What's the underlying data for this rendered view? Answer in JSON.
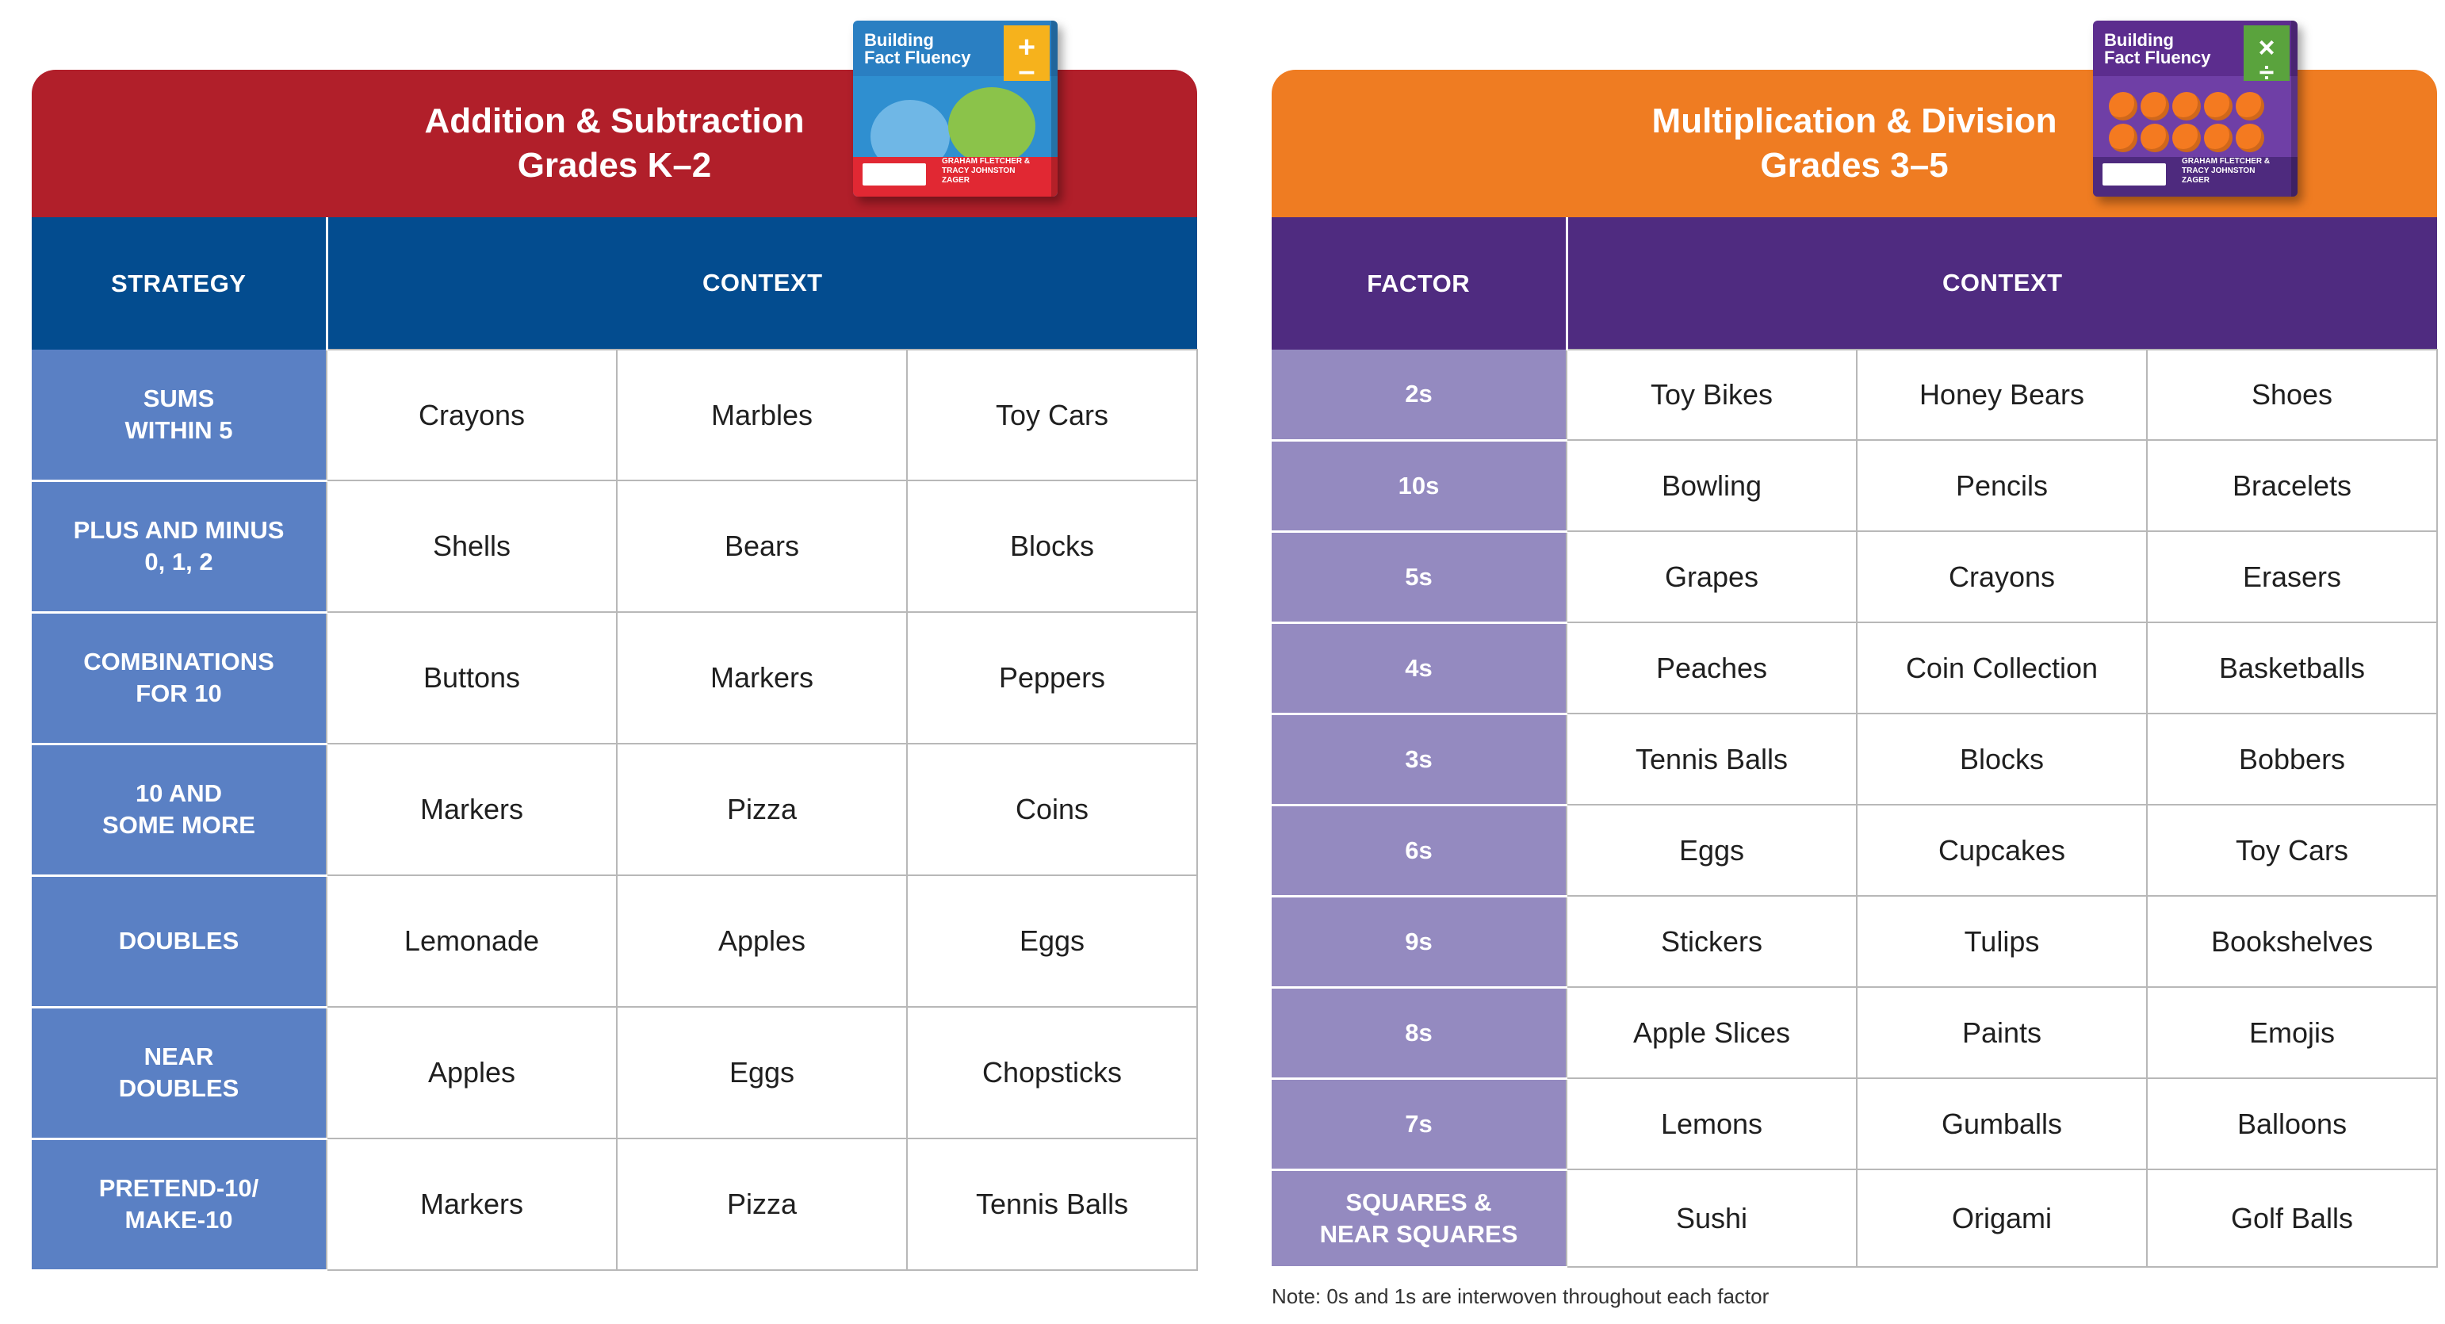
{
  "left": {
    "banner": {
      "line1": "Addition & Subtraction",
      "line2": "Grades K–2"
    },
    "book": {
      "title1": "Building",
      "title2": "Fact Fluency",
      "author1": "GRAHAM FLETCHER &",
      "author2": "TRACY JOHNSTON ZAGER",
      "operator1": "+",
      "operator2": "–"
    },
    "header": {
      "col1": "STRATEGY",
      "col2": "CONTEXT"
    },
    "rows": [
      {
        "label1": "SUMS",
        "label2": "WITHIN 5",
        "c1": "Crayons",
        "c2": "Marbles",
        "c3": "Toy Cars"
      },
      {
        "label1": "PLUS AND MINUS",
        "label2": "0, 1, 2",
        "c1": "Shells",
        "c2": "Bears",
        "c3": "Blocks"
      },
      {
        "label1": "COMBINATIONS",
        "label2": "FOR 10",
        "c1": "Buttons",
        "c2": "Markers",
        "c3": "Peppers"
      },
      {
        "label1": "10 AND",
        "label2": "SOME MORE",
        "c1": "Markers",
        "c2": "Pizza",
        "c3": "Coins"
      },
      {
        "label1": "DOUBLES",
        "label2": "",
        "c1": "Lemonade",
        "c2": "Apples",
        "c3": "Eggs"
      },
      {
        "label1": "NEAR",
        "label2": "DOUBLES",
        "c1": "Apples",
        "c2": "Eggs",
        "c3": "Chopsticks"
      },
      {
        "label1": "PRETEND-10/",
        "label2": "MAKE-10",
        "c1": "Markers",
        "c2": "Pizza",
        "c3": "Tennis Balls"
      }
    ]
  },
  "right": {
    "banner": {
      "line1": "Multiplication & Division",
      "line2": "Grades 3–5"
    },
    "book": {
      "title1": "Building",
      "title2": "Fact Fluency",
      "author1": "GRAHAM FLETCHER &",
      "author2": "TRACY JOHNSTON ZAGER",
      "operator1": "×",
      "operator2": "÷"
    },
    "header": {
      "col1": "FACTOR",
      "col2": "CONTEXT"
    },
    "rows": [
      {
        "label1": "2s",
        "label2": "",
        "c1": "Toy Bikes",
        "c2": "Honey Bears",
        "c3": "Shoes"
      },
      {
        "label1": "10s",
        "label2": "",
        "c1": "Bowling",
        "c2": "Pencils",
        "c3": "Bracelets"
      },
      {
        "label1": "5s",
        "label2": "",
        "c1": "Grapes",
        "c2": "Crayons",
        "c3": "Erasers"
      },
      {
        "label1": "4s",
        "label2": "",
        "c1": "Peaches",
        "c2": "Coin Collection",
        "c3": "Basketballs"
      },
      {
        "label1": "3s",
        "label2": "",
        "c1": "Tennis Balls",
        "c2": "Blocks",
        "c3": "Bobbers"
      },
      {
        "label1": "6s",
        "label2": "",
        "c1": "Eggs",
        "c2": "Cupcakes",
        "c3": "Toy Cars"
      },
      {
        "label1": "9s",
        "label2": "",
        "c1": "Stickers",
        "c2": "Tulips",
        "c3": "Bookshelves"
      },
      {
        "label1": "8s",
        "label2": "",
        "c1": "Apple Slices",
        "c2": "Paints",
        "c3": "Emojis"
      },
      {
        "label1": "7s",
        "label2": "",
        "c1": "Lemons",
        "c2": "Gumballs",
        "c3": "Balloons"
      },
      {
        "label1": "SQUARES &",
        "label2": "NEAR SQUARES",
        "c1": "Sushi",
        "c2": "Origami",
        "c3": "Golf Balls"
      }
    ]
  },
  "note": "Note: 0s and 1s are interwoven throughout each factor",
  "colors": {
    "left_banner": "#b11f2a",
    "left_header": "#034c8f",
    "left_label": "#5a80c4",
    "right_banner": "#ef7c22",
    "right_header": "#4f2b80",
    "right_label": "#948ac0"
  }
}
